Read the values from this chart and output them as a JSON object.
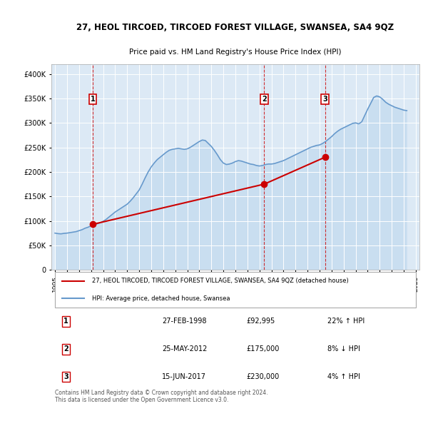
{
  "title": "27, HEOL TIRCOED, TIRCOED FOREST VILLAGE, SWANSEA, SA4 9QZ",
  "subtitle": "Price paid vs. HM Land Registry's House Price Index (HPI)",
  "background_color": "#dce9f5",
  "plot_bg_color": "#dce9f5",
  "sale_color": "#cc0000",
  "hpi_color": "#6699cc",
  "hpi_fill_color": "#b8d4ec",
  "ylim": [
    0,
    420000
  ],
  "yticks": [
    0,
    50000,
    100000,
    150000,
    200000,
    250000,
    300000,
    350000,
    400000
  ],
  "ytick_labels": [
    "0",
    "£50K",
    "£100K",
    "£150K",
    "£200K",
    "£250K",
    "£300K",
    "£350K",
    "£400K"
  ],
  "sale_points": [
    {
      "year": 1998.15,
      "price": 92995,
      "label": "1"
    },
    {
      "year": 2012.4,
      "price": 175000,
      "label": "2"
    },
    {
      "year": 2017.46,
      "price": 230000,
      "label": "3"
    }
  ],
  "legend_line1": "27, HEOL TIRCOED, TIRCOED FOREST VILLAGE, SWANSEA, SA4 9QZ (detached house)",
  "legend_line2": "HPI: Average price, detached house, Swansea",
  "table_rows": [
    [
      "1",
      "27-FEB-1998",
      "£92,995",
      "22% ↑ HPI"
    ],
    [
      "2",
      "25-MAY-2012",
      "£175,000",
      "8% ↓ HPI"
    ],
    [
      "3",
      "15-JUN-2017",
      "£230,000",
      "4% ↑ HPI"
    ]
  ],
  "footer": "Contains HM Land Registry data © Crown copyright and database right 2024.\nThis data is licensed under the Open Government Licence v3.0.",
  "hpi_data": {
    "years": [
      1995.0,
      1995.25,
      1995.5,
      1995.75,
      1996.0,
      1996.25,
      1996.5,
      1996.75,
      1997.0,
      1997.25,
      1997.5,
      1997.75,
      1998.0,
      1998.25,
      1998.5,
      1998.75,
      1999.0,
      1999.25,
      1999.5,
      1999.75,
      2000.0,
      2000.25,
      2000.5,
      2000.75,
      2001.0,
      2001.25,
      2001.5,
      2001.75,
      2002.0,
      2002.25,
      2002.5,
      2002.75,
      2003.0,
      2003.25,
      2003.5,
      2003.75,
      2004.0,
      2004.25,
      2004.5,
      2004.75,
      2005.0,
      2005.25,
      2005.5,
      2005.75,
      2006.0,
      2006.25,
      2006.5,
      2006.75,
      2007.0,
      2007.25,
      2007.5,
      2007.75,
      2008.0,
      2008.25,
      2008.5,
      2008.75,
      2009.0,
      2009.25,
      2009.5,
      2009.75,
      2010.0,
      2010.25,
      2010.5,
      2010.75,
      2011.0,
      2011.25,
      2011.5,
      2011.75,
      2012.0,
      2012.25,
      2012.5,
      2012.75,
      2013.0,
      2013.25,
      2013.5,
      2013.75,
      2014.0,
      2014.25,
      2014.5,
      2014.75,
      2015.0,
      2015.25,
      2015.5,
      2015.75,
      2016.0,
      2016.25,
      2016.5,
      2016.75,
      2017.0,
      2017.25,
      2017.5,
      2017.75,
      2018.0,
      2018.25,
      2018.5,
      2018.75,
      2019.0,
      2019.25,
      2019.5,
      2019.75,
      2020.0,
      2020.25,
      2020.5,
      2020.75,
      2021.0,
      2021.25,
      2021.5,
      2021.75,
      2022.0,
      2022.25,
      2022.5,
      2022.75,
      2023.0,
      2023.25,
      2023.5,
      2023.75,
      2024.0,
      2024.25
    ],
    "values": [
      75000,
      74000,
      73500,
      74500,
      75000,
      76000,
      77000,
      78000,
      80000,
      82000,
      85000,
      87000,
      90000,
      92000,
      94000,
      96000,
      99000,
      103000,
      108000,
      113000,
      118000,
      122000,
      126000,
      130000,
      134000,
      140000,
      147000,
      155000,
      163000,
      175000,
      188000,
      200000,
      210000,
      218000,
      225000,
      230000,
      235000,
      240000,
      244000,
      246000,
      247000,
      248000,
      247000,
      246000,
      247000,
      250000,
      254000,
      258000,
      262000,
      265000,
      264000,
      258000,
      252000,
      244000,
      235000,
      225000,
      218000,
      215000,
      216000,
      218000,
      221000,
      223000,
      222000,
      220000,
      218000,
      216000,
      215000,
      213000,
      212000,
      213000,
      215000,
      216000,
      216000,
      217000,
      219000,
      221000,
      223000,
      226000,
      229000,
      232000,
      235000,
      238000,
      241000,
      244000,
      247000,
      250000,
      252000,
      254000,
      255000,
      258000,
      262000,
      267000,
      272000,
      278000,
      283000,
      287000,
      290000,
      293000,
      296000,
      299000,
      300000,
      298000,
      302000,
      315000,
      328000,
      340000,
      352000,
      355000,
      353000,
      348000,
      342000,
      338000,
      335000,
      332000,
      330000,
      328000,
      326000,
      325000
    ]
  },
  "sale_line_data": {
    "x": [
      1998.15,
      2012.4,
      2017.46
    ],
    "y": [
      92995,
      175000,
      230000
    ]
  }
}
